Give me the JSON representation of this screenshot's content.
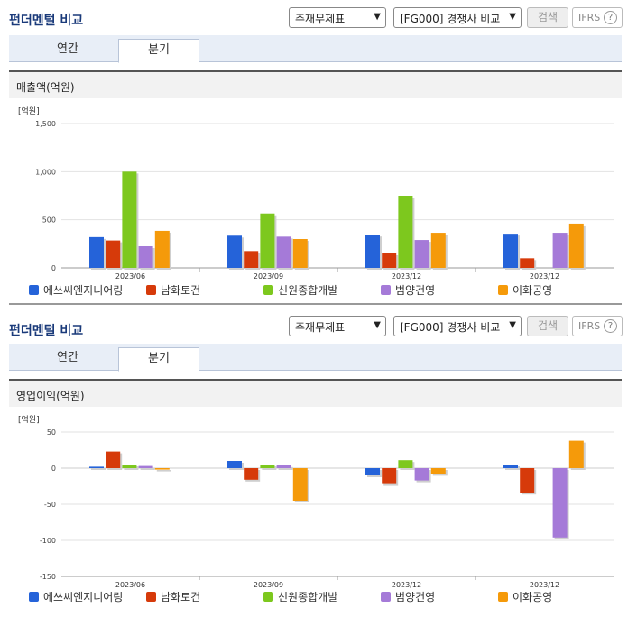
{
  "panels": [
    {
      "title": "펀더멘털 비교",
      "select1": "주재무제표",
      "select2": "[FG000] 경쟁사 비교",
      "search_label": "검색",
      "ifrs_label": "IFRS",
      "tabs": [
        "연간",
        "분기"
      ],
      "active_tab": "분기",
      "subhead": "매출액(억원)",
      "unit_label": "[억원]"
    },
    {
      "title": "펀더멘털 비교",
      "select1": "주재무제표",
      "select2": "[FG000] 경쟁사 비교",
      "search_label": "검색",
      "ifrs_label": "IFRS",
      "tabs": [
        "연간",
        "분기"
      ],
      "active_tab": "분기",
      "subhead": "영업이익(억원)",
      "unit_label": "[억원]"
    }
  ],
  "legend": [
    {
      "name": "에쓰씨엔지니어링",
      "color": "#2563d9"
    },
    {
      "name": "남화토건",
      "color": "#d63a0a"
    },
    {
      "name": "신원종합개발",
      "color": "#7dc81e"
    },
    {
      "name": "범양건영",
      "color": "#a57ad8"
    },
    {
      "name": "이화공영",
      "color": "#f59a0a"
    }
  ],
  "chart_data": [
    {
      "type": "bar",
      "title": "매출액(억원)",
      "ylabel": "[억원]",
      "categories": [
        "2023/06",
        "2023/09",
        "2023/12",
        "2023/12"
      ],
      "ylim": [
        0,
        1500
      ],
      "yticks": [
        0,
        500,
        1000,
        1500
      ],
      "ytick_labels": [
        "0",
        "500",
        "1,000",
        "1,500"
      ],
      "series": [
        {
          "name": "에쓰씨엔지니어링",
          "values": [
            320,
            335,
            345,
            355
          ]
        },
        {
          "name": "남화토건",
          "values": [
            285,
            175,
            150,
            100
          ]
        },
        {
          "name": "신원종합개발",
          "values": [
            1000,
            565,
            750,
            null
          ]
        },
        {
          "name": "범양건영",
          "values": [
            225,
            325,
            290,
            365
          ]
        },
        {
          "name": "이화공영",
          "values": [
            385,
            300,
            365,
            460
          ]
        }
      ],
      "grid": true,
      "legend_position": "bottom"
    },
    {
      "type": "bar",
      "title": "영업이익(억원)",
      "ylabel": "[억원]",
      "categories": [
        "2023/06",
        "2023/09",
        "2023/12",
        "2023/12"
      ],
      "ylim": [
        -150,
        50
      ],
      "yticks": [
        -150,
        -100,
        -50,
        0,
        50
      ],
      "ytick_labels": [
        "-150",
        "-100",
        "-50",
        "0",
        "50"
      ],
      "series": [
        {
          "name": "에쓰씨엔지니어링",
          "values": [
            2,
            10,
            -10,
            5
          ]
        },
        {
          "name": "남화토건",
          "values": [
            23,
            -16,
            -22,
            -34
          ]
        },
        {
          "name": "신원종합개발",
          "values": [
            5,
            5,
            11,
            null
          ]
        },
        {
          "name": "범양건영",
          "values": [
            3,
            4,
            -17,
            -96
          ]
        },
        {
          "name": "이화공영",
          "values": [
            -2,
            -45,
            -8,
            38
          ]
        }
      ],
      "grid": true,
      "legend_position": "bottom"
    }
  ]
}
